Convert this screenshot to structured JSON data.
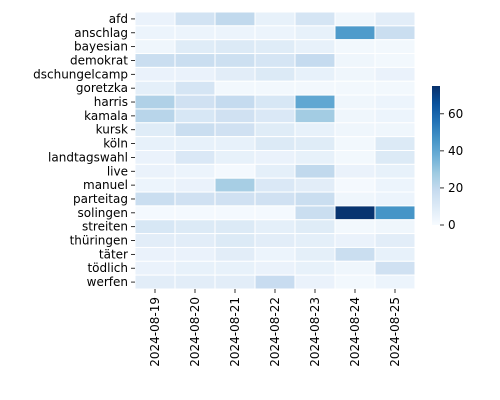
{
  "chart_data": {
    "type": "heatmap",
    "title": "",
    "xlabel": "",
    "ylabel": "",
    "x": [
      "2024-08-19",
      "2024-08-20",
      "2024-08-21",
      "2024-08-22",
      "2024-08-23",
      "2024-08-24",
      "2024-08-25"
    ],
    "y": [
      "afd",
      "anschlag",
      "bayesian",
      "demokrat",
      "dschungelcamp",
      "goretzka",
      "harris",
      "kamala",
      "kursk",
      "köln",
      "landtagswahl",
      "live",
      "manuel",
      "parteitag",
      "solingen",
      "streiten",
      "thüringen",
      "täter",
      "tödlich",
      "werfen"
    ],
    "values": [
      [
        5,
        14,
        20,
        6,
        13,
        3,
        8
      ],
      [
        4,
        4,
        4,
        4,
        6,
        44,
        17
      ],
      [
        3,
        9,
        10,
        9,
        6,
        2,
        2
      ],
      [
        17,
        17,
        16,
        13,
        19,
        3,
        2
      ],
      [
        5,
        5,
        8,
        10,
        6,
        3,
        5
      ],
      [
        7,
        13,
        2,
        2,
        2,
        2,
        2
      ],
      [
        24,
        15,
        19,
        12,
        40,
        3,
        4
      ],
      [
        22,
        12,
        15,
        11,
        27,
        3,
        4
      ],
      [
        9,
        17,
        15,
        9,
        6,
        3,
        3
      ],
      [
        6,
        6,
        6,
        10,
        9,
        2,
        10
      ],
      [
        5,
        11,
        6,
        5,
        6,
        2,
        10
      ],
      [
        5,
        4,
        1,
        7,
        20,
        5,
        6
      ],
      [
        4,
        5,
        26,
        11,
        8,
        1,
        4
      ],
      [
        17,
        15,
        15,
        15,
        17,
        3,
        4
      ],
      [
        1,
        1,
        1,
        1,
        17,
        74,
        46
      ],
      [
        12,
        10,
        10,
        7,
        9,
        2,
        3
      ],
      [
        8,
        8,
        10,
        8,
        7,
        5,
        8
      ],
      [
        5,
        5,
        8,
        4,
        7,
        17,
        6
      ],
      [
        5,
        6,
        6,
        5,
        6,
        3,
        15
      ],
      [
        8,
        8,
        8,
        18,
        5,
        2,
        4
      ]
    ],
    "colorbar": {
      "min": 0,
      "max": 75,
      "ticks": [
        0,
        20,
        40,
        60
      ],
      "colormap": [
        "#f7fbff",
        "#deebf7",
        "#c6dbef",
        "#9ecae1",
        "#6baed6",
        "#4292c6",
        "#2171b5",
        "#08519c",
        "#08306b"
      ]
    },
    "grid": false,
    "legend": "colorbar right"
  }
}
